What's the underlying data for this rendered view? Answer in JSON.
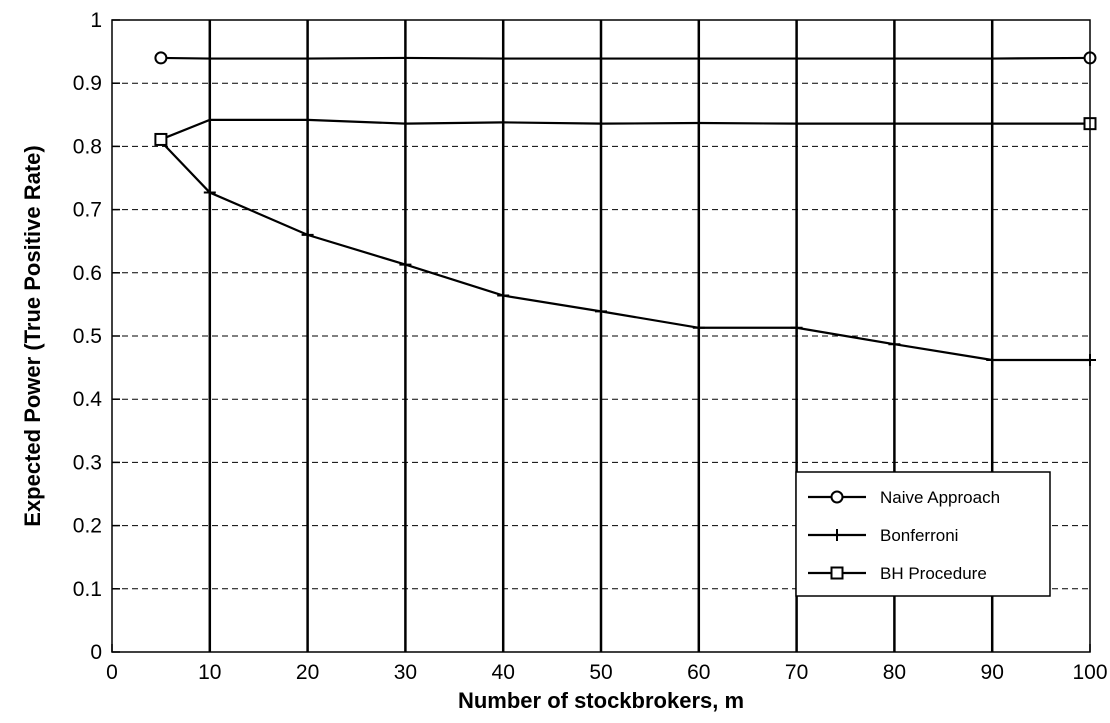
{
  "chart_data": {
    "type": "line",
    "title": "",
    "xlabel": "Number of stockbrokers, m",
    "ylabel": "Expected Power (True Positive Rate)",
    "xlim": [
      0,
      100
    ],
    "ylim": [
      0,
      1
    ],
    "x_ticks": [
      0,
      10,
      20,
      30,
      40,
      50,
      60,
      70,
      80,
      90,
      100
    ],
    "y_ticks": [
      0,
      0.1,
      0.2,
      0.3,
      0.4,
      0.5,
      0.6,
      0.7,
      0.8,
      0.9,
      1
    ],
    "x_tick_labels": [
      "0",
      "10",
      "20",
      "30",
      "40",
      "50",
      "60",
      "70",
      "80",
      "90",
      "100"
    ],
    "y_tick_labels": [
      "0",
      "0.1",
      "0.2",
      "0.3",
      "0.4",
      "0.5",
      "0.6",
      "0.7",
      "0.8",
      "0.9",
      "1"
    ],
    "grid": {
      "x": "solid",
      "y": "dashed"
    },
    "legend_position": "lower-right",
    "x": [
      5,
      10,
      20,
      30,
      40,
      50,
      60,
      70,
      80,
      90,
      100
    ],
    "series": [
      {
        "name": "Naive Approach",
        "marker": "circle",
        "color": "#000000",
        "values": [
          0.94,
          0.939,
          0.939,
          0.94,
          0.939,
          0.939,
          0.939,
          0.939,
          0.939,
          0.939,
          0.94
        ]
      },
      {
        "name": "Bonferroni",
        "marker": "plus",
        "color": "#000000",
        "values": [
          0.808,
          0.727,
          0.66,
          0.613,
          0.564,
          0.539,
          0.513,
          0.513,
          0.487,
          0.462,
          0.462
        ]
      },
      {
        "name": "BH Procedure",
        "marker": "square",
        "color": "#000000",
        "values": [
          0.811,
          0.842,
          0.842,
          0.836,
          0.838,
          0.836,
          0.837,
          0.836,
          0.836,
          0.836,
          0.836
        ]
      }
    ]
  }
}
